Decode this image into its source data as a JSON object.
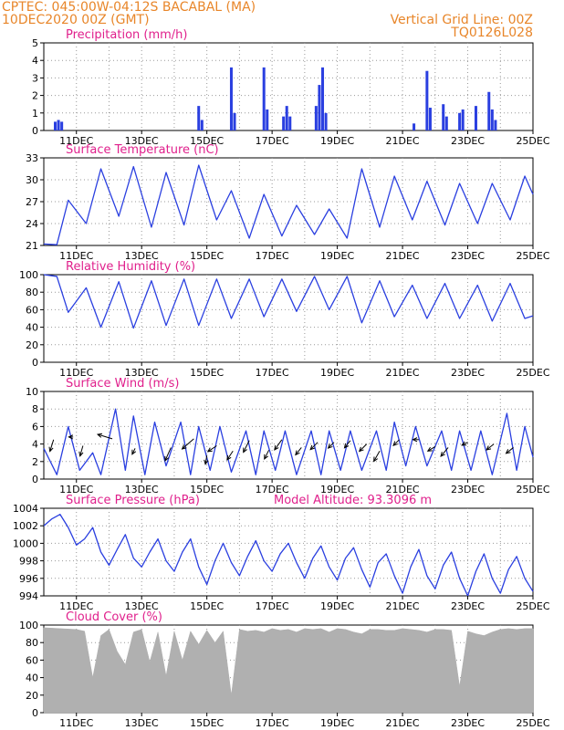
{
  "header": {
    "line1": "CPTEC:   045:00W-04:12S   BACABAL (MA)",
    "line2": "10DEC2020 00Z (GMT)",
    "grid_note": "Vertical Grid Line: 00Z",
    "code": "TQ0126L028"
  },
  "colors": {
    "header": "#e8862a",
    "title": "#e0208c",
    "line": "#2a3fe0",
    "cloud": "#b0b0b0"
  },
  "x_ticks": [
    "11DEC",
    "13DEC",
    "15DEC",
    "17DEC",
    "19DEC",
    "21DEC",
    "23DEC",
    "25DEC"
  ],
  "chart_data": [
    {
      "type": "bar",
      "title": "Precipitation (mm/h)",
      "ylim": [
        0,
        5
      ],
      "yticks": [
        "0",
        "1",
        "2",
        "3",
        "4",
        "5"
      ],
      "x_range_days": [
        10,
        25
      ],
      "points": [
        [
          10.35,
          0.5
        ],
        [
          10.45,
          0.6
        ],
        [
          10.55,
          0.5
        ],
        [
          14.75,
          1.4
        ],
        [
          14.85,
          0.6
        ],
        [
          15.75,
          3.6
        ],
        [
          15.85,
          1.0
        ],
        [
          16.75,
          3.6
        ],
        [
          16.85,
          1.2
        ],
        [
          17.35,
          0.8
        ],
        [
          17.45,
          1.4
        ],
        [
          17.55,
          0.8
        ],
        [
          18.35,
          1.4
        ],
        [
          18.45,
          2.6
        ],
        [
          18.55,
          3.6
        ],
        [
          18.65,
          1.0
        ],
        [
          21.35,
          0.4
        ],
        [
          21.75,
          3.4
        ],
        [
          21.85,
          1.3
        ],
        [
          22.25,
          1.5
        ],
        [
          22.35,
          0.8
        ],
        [
          22.75,
          1.0
        ],
        [
          22.85,
          1.2
        ],
        [
          23.25,
          1.4
        ],
        [
          23.65,
          2.2
        ],
        [
          23.75,
          1.2
        ],
        [
          23.85,
          0.6
        ]
      ]
    },
    {
      "type": "line",
      "title": "Surface Temperature (nC)",
      "ylim": [
        21,
        33
      ],
      "yticks": [
        "21",
        "24",
        "27",
        "30",
        "33"
      ],
      "x_range_days": [
        10,
        25
      ],
      "points": [
        [
          10.0,
          21.2
        ],
        [
          10.4,
          21.1
        ],
        [
          10.75,
          27.2
        ],
        [
          11.3,
          24.0
        ],
        [
          11.75,
          31.5
        ],
        [
          12.3,
          25.0
        ],
        [
          12.75,
          31.8
        ],
        [
          13.3,
          23.5
        ],
        [
          13.75,
          31.0
        ],
        [
          14.3,
          23.8
        ],
        [
          14.75,
          32.0
        ],
        [
          15.3,
          24.5
        ],
        [
          15.75,
          28.5
        ],
        [
          16.3,
          22.0
        ],
        [
          16.75,
          28.0
        ],
        [
          17.3,
          22.3
        ],
        [
          17.75,
          26.5
        ],
        [
          18.3,
          22.5
        ],
        [
          18.75,
          26.0
        ],
        [
          19.3,
          22.0
        ],
        [
          19.75,
          31.5
        ],
        [
          20.3,
          23.5
        ],
        [
          20.75,
          30.5
        ],
        [
          21.3,
          24.5
        ],
        [
          21.75,
          29.8
        ],
        [
          22.3,
          23.8
        ],
        [
          22.75,
          29.5
        ],
        [
          23.3,
          24.0
        ],
        [
          23.75,
          29.5
        ],
        [
          24.3,
          24.5
        ],
        [
          24.75,
          30.5
        ],
        [
          25.0,
          28.0
        ]
      ]
    },
    {
      "type": "line",
      "title": "Relative Humidity (%)",
      "ylim": [
        0,
        100
      ],
      "yticks": [
        "0",
        "20",
        "40",
        "60",
        "80",
        "100"
      ],
      "x_range_days": [
        10,
        25
      ],
      "points": [
        [
          10.0,
          100
        ],
        [
          10.4,
          98
        ],
        [
          10.75,
          57
        ],
        [
          11.3,
          85
        ],
        [
          11.75,
          40
        ],
        [
          12.3,
          92
        ],
        [
          12.75,
          39
        ],
        [
          13.3,
          93
        ],
        [
          13.75,
          42
        ],
        [
          14.3,
          95
        ],
        [
          14.75,
          42
        ],
        [
          15.3,
          95
        ],
        [
          15.75,
          50
        ],
        [
          16.3,
          95
        ],
        [
          16.75,
          52
        ],
        [
          17.3,
          95
        ],
        [
          17.75,
          58
        ],
        [
          18.3,
          98
        ],
        [
          18.75,
          60
        ],
        [
          19.3,
          98
        ],
        [
          19.75,
          45
        ],
        [
          20.3,
          93
        ],
        [
          20.75,
          52
        ],
        [
          21.3,
          88
        ],
        [
          21.75,
          50
        ],
        [
          22.3,
          90
        ],
        [
          22.75,
          50
        ],
        [
          23.3,
          88
        ],
        [
          23.75,
          47
        ],
        [
          24.3,
          90
        ],
        [
          24.75,
          50
        ],
        [
          25.0,
          53
        ]
      ]
    },
    {
      "type": "line",
      "title": "Surface Wind (m/s)",
      "ylim": [
        0,
        10
      ],
      "yticks": [
        "0",
        "2",
        "4",
        "6",
        "8",
        "10"
      ],
      "x_range_days": [
        10,
        25
      ],
      "points": [
        [
          10.0,
          3.5
        ],
        [
          10.4,
          0.5
        ],
        [
          10.75,
          6.0
        ],
        [
          11.1,
          1.0
        ],
        [
          11.5,
          3.0
        ],
        [
          11.75,
          0.5
        ],
        [
          12.2,
          8.0
        ],
        [
          12.5,
          1.0
        ],
        [
          12.75,
          7.2
        ],
        [
          13.1,
          0.5
        ],
        [
          13.4,
          6.5
        ],
        [
          13.75,
          1.5
        ],
        [
          14.2,
          6.5
        ],
        [
          14.5,
          0.5
        ],
        [
          14.75,
          6.0
        ],
        [
          15.1,
          1.0
        ],
        [
          15.4,
          6.0
        ],
        [
          15.75,
          0.8
        ],
        [
          16.2,
          5.5
        ],
        [
          16.5,
          0.5
        ],
        [
          16.75,
          5.5
        ],
        [
          17.1,
          1.0
        ],
        [
          17.4,
          5.5
        ],
        [
          17.75,
          0.5
        ],
        [
          18.2,
          5.5
        ],
        [
          18.5,
          0.5
        ],
        [
          18.75,
          5.5
        ],
        [
          19.1,
          1.0
        ],
        [
          19.4,
          5.5
        ],
        [
          19.75,
          1.0
        ],
        [
          20.2,
          5.5
        ],
        [
          20.5,
          1.0
        ],
        [
          20.75,
          6.5
        ],
        [
          21.1,
          1.5
        ],
        [
          21.4,
          6.0
        ],
        [
          21.75,
          1.5
        ],
        [
          22.2,
          5.5
        ],
        [
          22.5,
          1.0
        ],
        [
          22.75,
          5.5
        ],
        [
          23.1,
          1.0
        ],
        [
          23.4,
          5.5
        ],
        [
          23.75,
          0.5
        ],
        [
          24.2,
          7.5
        ],
        [
          24.5,
          1.0
        ],
        [
          24.75,
          6.0
        ],
        [
          25.0,
          2.5
        ]
      ],
      "wind_vectors": [
        [
          10.3,
          4.5,
          -0.25,
          -0.8
        ],
        [
          10.9,
          4.8,
          -0.3,
          0
        ],
        [
          11.2,
          3.8,
          -0.2,
          -0.7
        ],
        [
          12.1,
          4.6,
          -1.0,
          0.3
        ],
        [
          12.8,
          3.5,
          -0.2,
          -0.4
        ],
        [
          13.9,
          3.6,
          -0.4,
          -0.9
        ],
        [
          14.6,
          4.6,
          -0.8,
          -0.7
        ],
        [
          15.0,
          2.7,
          -0.1,
          -0.6
        ],
        [
          15.3,
          3.8,
          -0.6,
          -0.4
        ],
        [
          15.8,
          3.2,
          -0.4,
          -0.6
        ],
        [
          16.3,
          4.4,
          -0.4,
          -0.8
        ],
        [
          16.9,
          3.3,
          -0.3,
          -0.6
        ],
        [
          17.3,
          4.5,
          -0.5,
          -0.7
        ],
        [
          17.9,
          3.6,
          -0.4,
          -0.5
        ],
        [
          18.4,
          4.2,
          -0.5,
          -0.5
        ],
        [
          18.9,
          4.2,
          -0.4,
          -0.4
        ],
        [
          19.4,
          4.4,
          -0.4,
          -0.5
        ],
        [
          19.9,
          4.0,
          -0.5,
          -0.5
        ],
        [
          20.3,
          3.2,
          -0.4,
          -0.7
        ],
        [
          20.9,
          4.5,
          -0.4,
          -0.4
        ],
        [
          21.5,
          4.5,
          -0.4,
          0
        ],
        [
          22.0,
          3.7,
          -0.5,
          -0.3
        ],
        [
          22.4,
          3.6,
          -0.5,
          -0.6
        ],
        [
          23.0,
          4.2,
          -0.4,
          -0.2
        ],
        [
          23.8,
          4.0,
          -0.5,
          -0.4
        ],
        [
          24.4,
          3.6,
          -0.5,
          -0.4
        ]
      ]
    },
    {
      "type": "line",
      "title": "Surface Pressure (hPa)",
      "annotation": "Model Altitude: 93.3096 m",
      "ylim": [
        994,
        1004
      ],
      "yticks": [
        "994",
        "996",
        "998",
        "1000",
        "1002",
        "1004"
      ],
      "x_range_days": [
        10,
        25
      ],
      "points": [
        [
          10.0,
          1002.0
        ],
        [
          10.25,
          1002.8
        ],
        [
          10.5,
          1003.3
        ],
        [
          10.75,
          1001.8
        ],
        [
          11.0,
          999.8
        ],
        [
          11.25,
          1000.5
        ],
        [
          11.5,
          1001.8
        ],
        [
          11.75,
          999.0
        ],
        [
          12.0,
          997.5
        ],
        [
          12.25,
          999.3
        ],
        [
          12.5,
          1001.0
        ],
        [
          12.75,
          998.3
        ],
        [
          13.0,
          997.3
        ],
        [
          13.25,
          999.0
        ],
        [
          13.5,
          1000.5
        ],
        [
          13.75,
          998.0
        ],
        [
          14.0,
          996.8
        ],
        [
          14.25,
          999.0
        ],
        [
          14.5,
          1000.5
        ],
        [
          14.75,
          997.3
        ],
        [
          15.0,
          995.3
        ],
        [
          15.25,
          998.0
        ],
        [
          15.5,
          1000.0
        ],
        [
          15.75,
          997.8
        ],
        [
          16.0,
          996.3
        ],
        [
          16.25,
          998.5
        ],
        [
          16.5,
          1000.3
        ],
        [
          16.75,
          998.0
        ],
        [
          17.0,
          996.8
        ],
        [
          17.25,
          998.8
        ],
        [
          17.5,
          1000.0
        ],
        [
          17.75,
          997.8
        ],
        [
          18.0,
          996.0
        ],
        [
          18.25,
          998.3
        ],
        [
          18.5,
          999.7
        ],
        [
          18.75,
          997.3
        ],
        [
          19.0,
          995.8
        ],
        [
          19.25,
          998.3
        ],
        [
          19.5,
          999.5
        ],
        [
          19.75,
          997.0
        ],
        [
          20.0,
          995.0
        ],
        [
          20.25,
          997.8
        ],
        [
          20.5,
          998.8
        ],
        [
          20.75,
          996.3
        ],
        [
          21.0,
          994.3
        ],
        [
          21.25,
          997.3
        ],
        [
          21.5,
          999.3
        ],
        [
          21.75,
          996.3
        ],
        [
          22.0,
          994.8
        ],
        [
          22.25,
          997.5
        ],
        [
          22.5,
          999.0
        ],
        [
          22.75,
          996.0
        ],
        [
          23.0,
          994.0
        ],
        [
          23.25,
          996.8
        ],
        [
          23.5,
          998.8
        ],
        [
          23.75,
          996.0
        ],
        [
          24.0,
          994.3
        ],
        [
          24.25,
          997.0
        ],
        [
          24.5,
          998.5
        ],
        [
          24.75,
          996.0
        ],
        [
          25.0,
          994.5
        ]
      ]
    },
    {
      "type": "bar",
      "title": "Cloud Cover (%)",
      "ylim": [
        0,
        100
      ],
      "yticks": [
        "0",
        "20",
        "40",
        "60",
        "80",
        "100"
      ],
      "x_range_days": [
        10,
        25
      ],
      "points": [
        [
          10.0,
          97
        ],
        [
          10.5,
          96
        ],
        [
          11.0,
          95
        ],
        [
          11.25,
          93
        ],
        [
          11.5,
          40
        ],
        [
          11.75,
          88
        ],
        [
          12.0,
          95
        ],
        [
          12.25,
          70
        ],
        [
          12.5,
          55
        ],
        [
          12.75,
          92
        ],
        [
          13.0,
          95
        ],
        [
          13.25,
          58
        ],
        [
          13.5,
          92
        ],
        [
          13.75,
          42
        ],
        [
          14.0,
          93
        ],
        [
          14.25,
          60
        ],
        [
          14.5,
          93
        ],
        [
          14.75,
          78
        ],
        [
          15.0,
          94
        ],
        [
          15.25,
          80
        ],
        [
          15.5,
          93
        ],
        [
          15.75,
          20
        ],
        [
          16.0,
          95
        ],
        [
          16.25,
          93
        ],
        [
          16.5,
          94
        ],
        [
          16.75,
          92
        ],
        [
          17.0,
          96
        ],
        [
          17.25,
          94
        ],
        [
          17.5,
          95
        ],
        [
          17.75,
          92
        ],
        [
          18.0,
          96
        ],
        [
          18.25,
          95
        ],
        [
          18.5,
          96
        ],
        [
          18.75,
          92
        ],
        [
          19.0,
          96
        ],
        [
          19.25,
          95
        ],
        [
          19.5,
          92
        ],
        [
          19.75,
          90
        ],
        [
          20.0,
          95
        ],
        [
          20.25,
          95
        ],
        [
          20.5,
          94
        ],
        [
          20.75,
          94
        ],
        [
          21.0,
          96
        ],
        [
          21.25,
          95
        ],
        [
          21.5,
          94
        ],
        [
          21.75,
          92
        ],
        [
          22.0,
          95
        ],
        [
          22.25,
          95
        ],
        [
          22.5,
          94
        ],
        [
          22.75,
          30
        ],
        [
          23.0,
          93
        ],
        [
          23.25,
          90
        ],
        [
          23.5,
          88
        ],
        [
          23.75,
          92
        ],
        [
          24.0,
          95
        ],
        [
          24.25,
          96
        ],
        [
          24.5,
          95
        ],
        [
          24.75,
          96
        ],
        [
          25.0,
          96
        ]
      ]
    }
  ]
}
